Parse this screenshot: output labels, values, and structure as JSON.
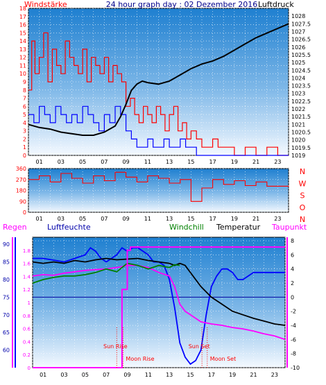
{
  "chart_data": [
    {
      "type": "line",
      "title": "24 hour graph day : 02 Dezember 2016",
      "left_label": "Windstärke",
      "right_label": "Luftdruck",
      "x_ticks": [
        "01",
        "03",
        "05",
        "07",
        "09",
        "11",
        "13",
        "15",
        "17",
        "19",
        "21",
        "23"
      ],
      "xlim": [
        0,
        24
      ],
      "ylim_left": [
        0,
        18
      ],
      "left_ticks": [
        "0",
        "1",
        "2",
        "3",
        "4",
        "5",
        "6",
        "7",
        "8",
        "9",
        "10",
        "11",
        "12",
        "13",
        "14",
        "15",
        "16",
        "17",
        "18"
      ],
      "ylim_right": [
        1019,
        1028.5
      ],
      "right_ticks": [
        "1019",
        "1019.5",
        "1020",
        "1020.5",
        "1021",
        "1021.5",
        "1022",
        "1022.5",
        "1023",
        "1023.5",
        "1024",
        "1024.5",
        "1025",
        "1025.5",
        "1026",
        "1026.5",
        "1027",
        "1027.5",
        "1028"
      ],
      "series": [
        {
          "name": "Windstärke",
          "color": "#ff0000",
          "x": [
            0,
            0.3,
            0.6,
            1,
            1.4,
            1.8,
            2.2,
            2.6,
            3,
            3.4,
            3.8,
            4.2,
            4.6,
            5,
            5.4,
            5.8,
            6.2,
            6.6,
            7,
            7.4,
            7.8,
            8.2,
            8.6,
            9,
            9.4,
            9.8,
            10.2,
            10.6,
            11,
            11.4,
            11.8,
            12.2,
            12.6,
            13,
            13.4,
            13.8,
            14.2,
            14.6,
            15,
            15.5,
            16,
            16.5,
            17,
            17.5,
            18,
            19,
            20,
            21,
            22,
            23,
            24
          ],
          "y": [
            8,
            14,
            10,
            12,
            15,
            9,
            13,
            11,
            10,
            14,
            12,
            11,
            10,
            13,
            9,
            12,
            11,
            10,
            12,
            9,
            11,
            10,
            9,
            6,
            7,
            5,
            4,
            6,
            5,
            4,
            6,
            5,
            3,
            5,
            6,
            3,
            4,
            2,
            3,
            2,
            1,
            1,
            2,
            1,
            1,
            0,
            1,
            0,
            1,
            0,
            0
          ]
        },
        {
          "name": "Böen",
          "color": "#0000ff",
          "x": [
            0,
            0.5,
            1,
            1.5,
            2,
            2.5,
            3,
            3.5,
            4,
            4.5,
            5,
            5.5,
            6,
            6.5,
            7,
            7.5,
            8,
            8.5,
            9,
            9.5,
            10,
            10.5,
            11,
            11.5,
            12,
            12.5,
            13,
            13.5,
            14,
            14.5,
            15,
            15.5,
            16,
            17,
            18,
            19,
            20,
            21,
            22,
            23,
            24
          ],
          "y": [
            5,
            4,
            6,
            5,
            4,
            6,
            5,
            4,
            5,
            4,
            6,
            5,
            4,
            3,
            5,
            4,
            6,
            5,
            3,
            2,
            1,
            1,
            2,
            1,
            1,
            2,
            1,
            1,
            2,
            1,
            1,
            0,
            0,
            0,
            0,
            0,
            0,
            0,
            0,
            0,
            0
          ]
        },
        {
          "name": "Luftdruck",
          "color": "#000000",
          "axis": "right",
          "x": [
            0,
            1,
            2,
            3,
            4,
            5,
            6,
            7,
            8,
            8.5,
            9,
            9.5,
            10,
            10.5,
            11,
            12,
            13,
            14,
            15,
            16,
            17,
            18,
            19,
            20,
            21,
            22,
            23,
            24
          ],
          "y": [
            1021,
            1020.8,
            1020.7,
            1020.5,
            1020.4,
            1020.3,
            1020.3,
            1020.5,
            1020.9,
            1021.5,
            1022.3,
            1023.2,
            1023.6,
            1023.8,
            1023.7,
            1023.6,
            1023.8,
            1024.2,
            1024.6,
            1024.9,
            1025.1,
            1025.4,
            1025.8,
            1026.2,
            1026.6,
            1026.9,
            1027.2,
            1027.5
          ]
        }
      ]
    },
    {
      "type": "scatter",
      "title": "Windrichtung",
      "x_ticks": [
        "01",
        "03",
        "05",
        "07",
        "09",
        "11",
        "13",
        "15",
        "17",
        "19",
        "21",
        "23"
      ],
      "xlim": [
        0,
        24
      ],
      "ylim": [
        0,
        360
      ],
      "left_ticks": [
        "0",
        "90",
        "180",
        "270",
        "360"
      ],
      "right_ticks": [
        "N",
        "W",
        "S",
        "O",
        "N"
      ],
      "series": [
        {
          "name": "Windrichtung",
          "color": "#ff0000",
          "x": [
            0,
            1,
            2,
            3,
            4,
            5,
            6,
            7,
            8,
            9,
            10,
            11,
            12,
            13,
            14,
            15,
            16,
            17,
            18,
            19,
            20,
            21,
            22,
            23,
            24
          ],
          "y": [
            270,
            300,
            250,
            320,
            280,
            240,
            300,
            260,
            330,
            290,
            250,
            300,
            280,
            240,
            270,
            90,
            200,
            270,
            230,
            260,
            220,
            250,
            215,
            215,
            210
          ]
        }
      ]
    },
    {
      "type": "line",
      "left_labels": [
        "Regen",
        "Luftfeuchte"
      ],
      "right_labels": [
        "Windchill",
        "Temperatur",
        "Taupunkt"
      ],
      "x_ticks": [
        "01",
        "03",
        "05",
        "07",
        "09",
        "11",
        "13",
        "15",
        "17",
        "19",
        "21",
        "23"
      ],
      "xlim": [
        0,
        24
      ],
      "ylim_humidity": [
        55,
        92
      ],
      "humidity_ticks": [
        "60",
        "65",
        "70",
        "75",
        "80",
        "85",
        "90"
      ],
      "ylim_rain": [
        0,
        2
      ],
      "rain_ticks": [
        "0",
        "0.2",
        "0.4",
        "0.6",
        "0.8",
        "1",
        "1.2",
        "1.4",
        "1.6",
        "1.8"
      ],
      "ylim_temp": [
        -10,
        8.5
      ],
      "temp_ticks": [
        "-10",
        "-8",
        "-6",
        "-4",
        "-2",
        "0",
        "2",
        "4",
        "6",
        "8"
      ],
      "series": [
        {
          "name": "Luftfeuchte",
          "color": "#0000ff",
          "axis": "humidity",
          "x": [
            0,
            1,
            2,
            3,
            4,
            5,
            5.5,
            6,
            6.5,
            7,
            7.5,
            8,
            8.5,
            9,
            9.5,
            10,
            10.5,
            11,
            11.5,
            12,
            12.5,
            13,
            13.5,
            14,
            14.5,
            15,
            15.5,
            16,
            16.5,
            17,
            17.5,
            18,
            18.5,
            19,
            19.5,
            20,
            20.5,
            21,
            22,
            23,
            24
          ],
          "y": [
            86,
            86,
            85.5,
            85,
            86,
            87,
            89,
            88,
            86,
            85,
            86,
            87,
            89,
            88,
            89,
            89,
            88,
            87,
            85,
            85,
            84,
            80,
            72,
            62,
            58,
            56,
            57,
            60,
            70,
            78,
            81,
            83,
            83,
            82,
            80,
            80,
            81,
            82,
            82,
            82,
            82
          ]
        },
        {
          "name": "Temperatur",
          "color": "#000000",
          "axis": "temp",
          "x": [
            0,
            1,
            2,
            3,
            4,
            5,
            6,
            7,
            8,
            9,
            10,
            11,
            12,
            13,
            13.5,
            14,
            14.5,
            15,
            15.5,
            16,
            17,
            18,
            19,
            20,
            21,
            22,
            23,
            24
          ],
          "y": [
            5,
            4.8,
            5,
            4.8,
            5.2,
            5,
            5.3,
            5.5,
            5.3,
            5.4,
            5.5,
            5.2,
            5,
            4.8,
            4.5,
            4.8,
            4.5,
            3.5,
            2.5,
            1.5,
            0,
            -1,
            -2,
            -2.5,
            -3,
            -3.4,
            -3.8,
            -4
          ]
        },
        {
          "name": "Taupunkt",
          "color": "#ff00ff",
          "axis": "temp",
          "x": [
            0,
            1,
            2,
            3,
            4,
            5,
            6,
            7,
            8,
            9,
            10,
            11,
            12,
            13,
            13.5,
            14,
            14.5,
            15,
            15.5,
            16,
            17,
            18,
            19,
            20,
            21,
            22,
            23,
            24
          ],
          "y": [
            3,
            3.2,
            3.1,
            3.4,
            3.6,
            3.8,
            3.9,
            4,
            4.2,
            4.5,
            4.5,
            4.2,
            3.5,
            3,
            1.5,
            -1,
            -2,
            -2.5,
            -3,
            -3.5,
            -3.8,
            -4,
            -4.3,
            -4.5,
            -4.8,
            -5.2,
            -5.5,
            -6
          ]
        },
        {
          "name": "Windchill",
          "color": "#008000",
          "axis": "temp",
          "x": [
            0,
            1,
            2,
            3,
            4,
            5,
            6,
            7,
            8,
            9,
            10,
            11,
            12,
            13,
            13.5,
            14
          ],
          "y": [
            2,
            2.5,
            2.8,
            3,
            3,
            3.2,
            3.5,
            4,
            3.6,
            4.8,
            4.5,
            4,
            4.5,
            4.2,
            4.6,
            4.5
          ]
        },
        {
          "name": "Regen",
          "color": "#ff00ff",
          "axis": "rain",
          "x": [
            0,
            8,
            8.5,
            9,
            9.3,
            24
          ],
          "y": [
            0,
            0,
            1.2,
            1.8,
            1.85,
            1.85
          ]
        }
      ],
      "annotations": [
        "Sun Rise",
        "Moon Rise",
        "Sun Set",
        "Moon Set"
      ],
      "events_hours": {
        "sun_rise": 8.0,
        "moon_rise": 8.6,
        "sun_set": 16.1,
        "moon_set": 16.6
      }
    }
  ]
}
